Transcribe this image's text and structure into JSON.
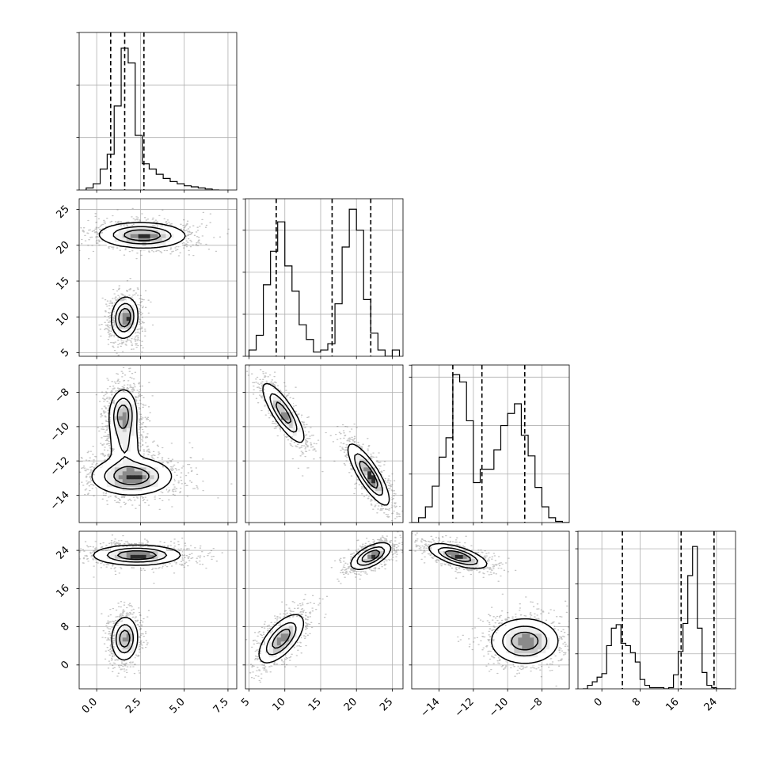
{
  "chart_data": {
    "type": "corner",
    "parameters": [
      {
        "index": 0,
        "range": [
          -1.0,
          8.0
        ],
        "ticks": [
          0.0,
          2.5,
          5.0,
          7.5
        ],
        "tick_labels": [
          "0.0",
          "2.5",
          "5.0",
          "7.5"
        ],
        "quantiles": [
          0.8,
          1.6,
          2.7
        ],
        "hist_edges": [
          -0.6,
          -0.2,
          0.2,
          0.6,
          1.0,
          1.4,
          1.8,
          2.2,
          2.6,
          3.0,
          3.4,
          3.8,
          4.2,
          4.6,
          5.0,
          5.4,
          5.8,
          6.2,
          6.6,
          7.0
        ],
        "hist_counts": [
          2,
          6,
          20,
          34,
          80,
          135,
          121,
          52,
          25,
          20,
          15,
          11,
          8,
          6,
          4,
          3,
          2,
          1,
          0
        ],
        "hist_ylim": [
          0,
          150
        ],
        "hist_yticks": [
          50,
          100
        ]
      },
      {
        "index": 1,
        "range": [
          4.5,
          26.5
        ],
        "ticks": [
          5,
          10,
          15,
          20,
          25
        ],
        "tick_labels": [
          "5",
          "10",
          "15",
          "20",
          "25"
        ],
        "quantiles": [
          8.8,
          16.6,
          22.0
        ],
        "hist_edges": [
          5,
          6,
          7,
          8,
          9,
          10,
          11,
          12,
          13,
          14,
          15,
          16,
          17,
          18,
          19,
          20,
          21,
          22,
          23,
          24,
          25,
          26
        ],
        "hist_counts": [
          3,
          10,
          34,
          50,
          64,
          43,
          31,
          15,
          8,
          2,
          3,
          6,
          25,
          52,
          70,
          60,
          27,
          11,
          3,
          0,
          3
        ],
        "hist_ylim": [
          0,
          75
        ],
        "hist_yticks": [
          20,
          40,
          60
        ]
      },
      {
        "index": 2,
        "range": [
          -15.6,
          -6.4
        ],
        "ticks": [
          -14,
          -12,
          -10,
          -8
        ],
        "tick_labels": [
          "−14",
          "−12",
          "−10",
          "−8"
        ],
        "quantiles": [
          -13.2,
          -11.5,
          -9.0
        ],
        "hist_edges": [
          -15.6,
          -15.2,
          -14.8,
          -14.4,
          -14.0,
          -13.6,
          -13.2,
          -12.8,
          -12.4,
          -12.0,
          -11.6,
          -11.2,
          -10.8,
          -10.4,
          -10.0,
          -9.6,
          -9.2,
          -8.8,
          -8.4,
          -8.0,
          -7.6,
          -7.2,
          -6.8,
          -6.4
        ],
        "hist_counts": [
          0,
          4,
          13,
          30,
          54,
          70,
          122,
          116,
          84,
          33,
          44,
          44,
          60,
          80,
          90,
          98,
          72,
          55,
          29,
          13,
          4,
          1,
          0
        ],
        "hist_ylim": [
          0,
          130
        ],
        "hist_yticks": [
          40,
          80,
          120
        ]
      },
      {
        "index": 3,
        "range": [
          -5.0,
          28.0
        ],
        "ticks": [
          0,
          8,
          16,
          24
        ],
        "tick_labels": [
          "0",
          "8",
          "16",
          "24"
        ],
        "quantiles": [
          4.3,
          16.6,
          23.5
        ],
        "hist_edges": [
          -4,
          -3,
          -2,
          -1,
          0,
          1,
          2,
          3,
          4,
          5,
          6,
          7,
          8,
          9,
          10,
          11,
          12,
          13,
          14,
          15,
          16,
          17,
          18,
          19,
          20,
          21,
          22,
          23,
          24,
          25,
          26,
          27
        ],
        "hist_counts": [
          0,
          3,
          6,
          10,
          13,
          37,
          52,
          55,
          39,
          37,
          31,
          23,
          8,
          3,
          1,
          1,
          1,
          0,
          1,
          12,
          32,
          56,
          97,
          122,
          52,
          14,
          3,
          1,
          0,
          0,
          0
        ],
        "hist_ylim": [
          0,
          135
        ],
        "hist_yticks": [
          30,
          60,
          90,
          120
        ]
      }
    ],
    "pairs": [
      {
        "x": 0,
        "y": 1,
        "blobs": [
          {
            "cx": 2.6,
            "cy": 21.4,
            "sx": 1.25,
            "sy": 0.9,
            "rho": -0.05,
            "w": 1.0
          },
          {
            "cx": 1.6,
            "cy": 9.9,
            "sx": 0.38,
            "sy": 1.45,
            "rho": 0.1,
            "w": 1.05
          }
        ]
      },
      {
        "x": 0,
        "y": 2,
        "blobs": [
          {
            "cx": 1.5,
            "cy": -9.3,
            "sx": 0.4,
            "sy": 0.75,
            "rho": 0.05,
            "w": 1.0
          },
          {
            "cx": 2.0,
            "cy": -12.9,
            "sx": 1.15,
            "sy": 0.55,
            "rho": 0.0,
            "w": 1.1
          },
          {
            "cx": 1.6,
            "cy": -11.1,
            "sx": 0.5,
            "sy": 0.8,
            "rho": 0.0,
            "w": 0.45
          }
        ]
      },
      {
        "x": 1,
        "y": 2,
        "blobs": [
          {
            "cx": 9.8,
            "cy": -9.2,
            "sx": 1.5,
            "sy": 0.9,
            "rho": -0.82,
            "w": 1.0
          },
          {
            "cx": 21.7,
            "cy": -12.8,
            "sx": 1.45,
            "sy": 0.9,
            "rho": -0.82,
            "w": 1.15
          }
        ]
      },
      {
        "x": 0,
        "y": 3,
        "blobs": [
          {
            "cx": 2.3,
            "cy": 23.0,
            "sx": 1.25,
            "sy": 1.05,
            "rho": 0.0,
            "w": 1.1
          },
          {
            "cx": 1.6,
            "cy": 5.5,
            "sx": 0.38,
            "sy": 2.3,
            "rho": 0.05,
            "w": 1.0
          }
        ]
      },
      {
        "x": 1,
        "y": 3,
        "blobs": [
          {
            "cx": 22.0,
            "cy": 22.8,
            "sx": 1.4,
            "sy": 1.4,
            "rho": 0.6,
            "w": 1.1
          },
          {
            "cx": 9.5,
            "cy": 5.5,
            "sx": 1.6,
            "sy": 2.6,
            "rho": 0.65,
            "w": 1.0
          }
        ]
      },
      {
        "x": 2,
        "y": 3,
        "blobs": [
          {
            "cx": -12.9,
            "cy": 22.8,
            "sx": 0.85,
            "sy": 1.3,
            "rho": -0.65,
            "w": 1.1
          },
          {
            "cx": -9.0,
            "cy": 5.0,
            "sx": 1.0,
            "sy": 2.4,
            "rho": 0.0,
            "w": 1.0
          }
        ]
      }
    ]
  }
}
